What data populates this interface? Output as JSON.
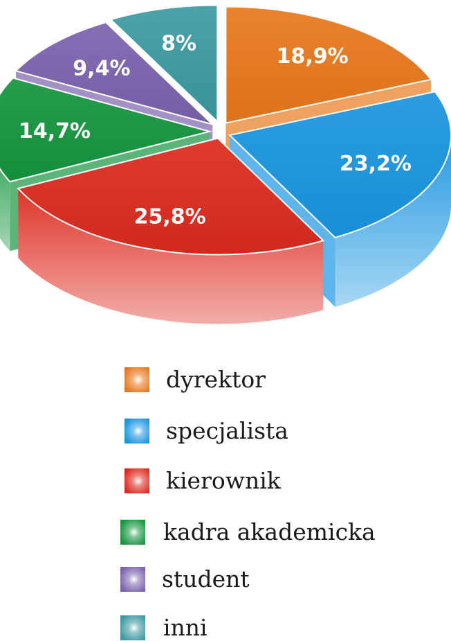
{
  "chart_data": {
    "type": "pie",
    "style": "3d-exploded",
    "legend_position": "bottom",
    "series": [
      {
        "label": "dyrektor",
        "value": 18.9,
        "value_label": "18,9%",
        "color": "#e8781c"
      },
      {
        "label": "specjalista",
        "value": 23.2,
        "value_label": "23,2%",
        "color": "#1a95e0"
      },
      {
        "label": "kierownik",
        "value": 25.8,
        "value_label": "25,8%",
        "color": "#dc2a1e"
      },
      {
        "label": "kadra akademicka",
        "value": 14.7,
        "value_label": "14,7%",
        "color": "#14953f"
      },
      {
        "label": "student",
        "value": 9.4,
        "value_label": "9,4%",
        "color": "#7b62ad"
      },
      {
        "label": "inni",
        "value": 8.0,
        "value_label": "8%",
        "color": "#3c9aa1"
      }
    ]
  }
}
